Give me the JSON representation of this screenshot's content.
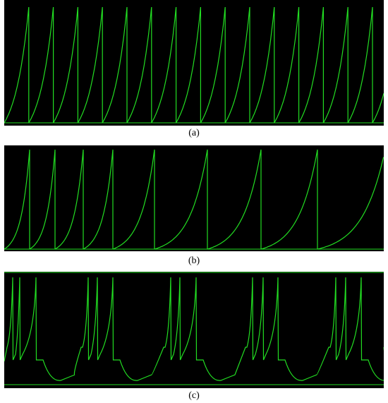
{
  "line_color": "#22dd22",
  "background_color": "#000000",
  "chart_data": [
    {
      "type": "line",
      "caption": "(a)",
      "pattern": "regular",
      "series": [
        {
          "spike_times": [
            0.0,
            34.8,
            69.6,
            104.4,
            139.2,
            174.0,
            208.8,
            243.6,
            278.4,
            313.2,
            348.0,
            382.8,
            417.6,
            452.4,
            487.2,
            522.0
          ]
        }
      ],
      "curvature": 1.8,
      "xlim": [
        0,
        538
      ],
      "ylim": [
        0,
        1
      ]
    },
    {
      "type": "line",
      "caption": "(b)",
      "pattern": "adapting",
      "series": [
        {
          "spike_times": [
            0,
            36,
            72,
            112,
            154,
            213,
            288,
            364,
            444,
            540
          ]
        }
      ],
      "curvature": 3.0,
      "xlim": [
        0,
        538
      ],
      "ylim": [
        0,
        1
      ]
    },
    {
      "type": "line",
      "caption": "(c)",
      "pattern": "bursting",
      "series": [
        {
          "burst_spike_times": [
            [
              12,
              22,
              45
            ],
            [
              119,
              132,
              154
            ],
            [
              236,
              249,
              272
            ],
            [
              352,
              367,
              388
            ],
            [
              470,
              484,
              506
            ]
          ]
        }
      ],
      "xlim": [
        0,
        538
      ],
      "ylim": [
        0,
        1
      ]
    }
  ]
}
